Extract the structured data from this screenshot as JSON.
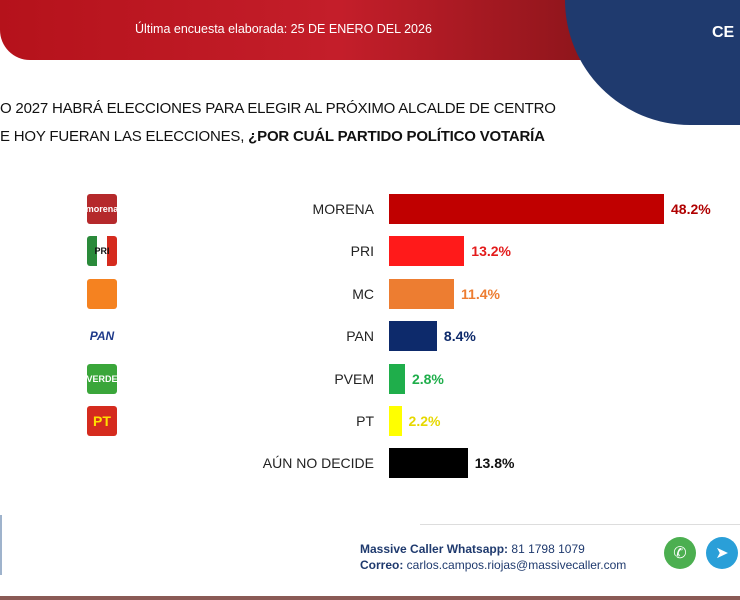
{
  "header": {
    "date_text": "Última encuesta elaborada: 25 DE ENERO DEL 2026",
    "corner_text": "CE"
  },
  "question": {
    "line1": "O 2027 HABRÁ ELECCIONES PARA ELEGIR AL PRÓXIMO ALCALDE DE CENTRO",
    "line2_plain": "E HOY FUERAN LAS ELECCIONES, ",
    "line2_bold": "¿POR CUÁL PARTIDO POLÍTICO VOTARÍA"
  },
  "chart_data": {
    "type": "bar",
    "orientation": "horizontal",
    "categories": [
      "MORENA",
      "PRI",
      "MC",
      "PAN",
      "PVEM",
      "PT",
      "AÚN NO DECIDE"
    ],
    "values": [
      48.2,
      13.2,
      11.4,
      8.4,
      2.8,
      2.2,
      13.8
    ],
    "labels": [
      "48.2%",
      "13.2%",
      "11.4%",
      "8.4%",
      "2.8%",
      "2.2%",
      "13.8%"
    ],
    "colors": [
      "#c00000",
      "#ff1a1a",
      "#ed7d31",
      "#0d2a6b",
      "#1fae4b",
      "#ffff00",
      "#000000"
    ],
    "label_colors": [
      "#b00000",
      "#e31b1b",
      "#ed7d31",
      "#0d2a6b",
      "#1fae4b",
      "#e6d800",
      "#111111"
    ],
    "logos": [
      {
        "icon": "morena-logo",
        "text": "morena",
        "bg": "#b5292b"
      },
      {
        "icon": "pri-logo",
        "text": "PRI",
        "bg": "#d9d9d9"
      },
      {
        "icon": "mc-logo",
        "text": "",
        "bg": "#f58220"
      },
      {
        "icon": "pan-logo",
        "text": "PAN",
        "bg": "#ffffff"
      },
      {
        "icon": "verde-logo",
        "text": "VERDE",
        "bg": "#3aa63a"
      },
      {
        "icon": "pt-logo",
        "text": "PT",
        "bg": "#d52b1e"
      }
    ],
    "grid": false
  },
  "footer": {
    "whatsapp_label": "Massive Caller Whatsapp:",
    "whatsapp_value": " 81 1798 1079",
    "email_label": "Correo:",
    "email_value": " carlos.campos.riojas@massivecaller.com",
    "icons": [
      "whatsapp-icon",
      "telegram-icon"
    ]
  }
}
